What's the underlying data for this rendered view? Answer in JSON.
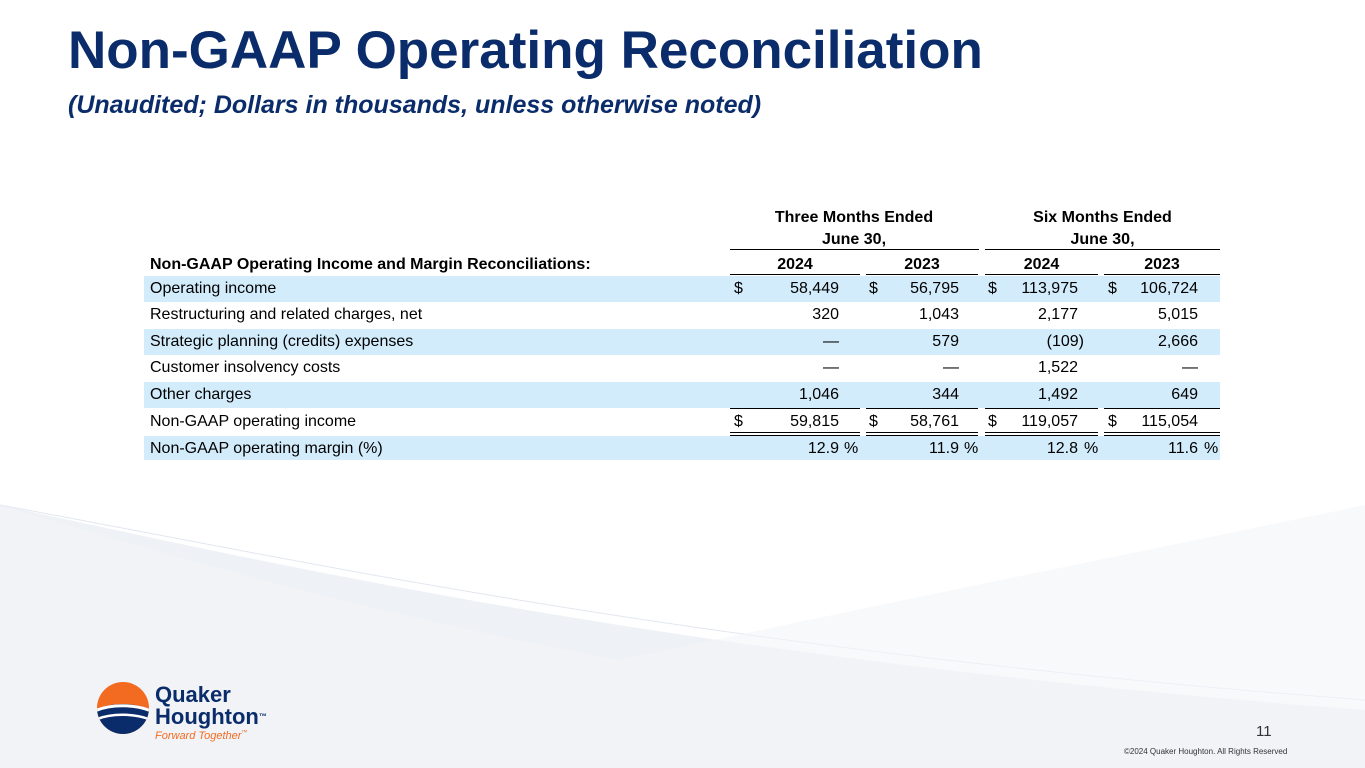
{
  "title": "Non-GAAP Operating Reconciliation",
  "subtitle": "(Unaudited; Dollars in thousands, unless otherwise noted)",
  "table": {
    "group_headers": [
      {
        "line1": "Three Months Ended",
        "line2": "June 30,"
      },
      {
        "line1": "Six Months Ended",
        "line2": "June 30,"
      }
    ],
    "section_label": "Non-GAAP Operating Income and Margin Reconciliations:",
    "years": [
      "2024",
      "2023",
      "2024",
      "2023"
    ],
    "rows": [
      {
        "label": "Operating income",
        "dollar": [
          "$",
          "$",
          "$",
          "$"
        ],
        "values": [
          "58,449",
          "56,795",
          "113,975",
          "106,724"
        ],
        "pct": [
          "",
          "",
          "",
          ""
        ]
      },
      {
        "label": "Restructuring and related charges, net",
        "dollar": [
          "",
          "",
          "",
          ""
        ],
        "values": [
          "320",
          "1,043",
          "2,177",
          "5,015"
        ],
        "pct": [
          "",
          "",
          "",
          ""
        ]
      },
      {
        "label": "Strategic planning (credits) expenses",
        "dollar": [
          "",
          "",
          "",
          ""
        ],
        "values": [
          "—",
          "579",
          "(109)",
          "2,666"
        ],
        "pct": [
          "",
          "",
          "",
          ""
        ]
      },
      {
        "label": "Customer insolvency costs",
        "dollar": [
          "",
          "",
          "",
          ""
        ],
        "values": [
          "—",
          "—",
          "1,522",
          "—"
        ],
        "pct": [
          "",
          "",
          "",
          ""
        ]
      },
      {
        "label": "Other charges",
        "dollar": [
          "",
          "",
          "",
          ""
        ],
        "values": [
          "1,046",
          "344",
          "1,492",
          "649"
        ],
        "pct": [
          "",
          "",
          "",
          ""
        ]
      },
      {
        "label": "Non-GAAP operating income",
        "dollar": [
          "$",
          "$",
          "$",
          "$"
        ],
        "values": [
          "59,815",
          "58,761",
          "119,057",
          "115,054"
        ],
        "pct": [
          "",
          "",
          "",
          ""
        ]
      },
      {
        "label": "Non-GAAP operating margin (%)",
        "dollar": [
          "",
          "",
          "",
          ""
        ],
        "values": [
          "12.9",
          "11.9",
          "12.8",
          "11.6"
        ],
        "pct": [
          "%",
          "%",
          "%",
          "%"
        ]
      }
    ]
  },
  "logo": {
    "line1": "Quaker",
    "line2": "Houghton",
    "tm": "™",
    "tagline": "Forward Together",
    "tagline_tm": "™"
  },
  "page_number": "11",
  "copyright": "©2024 Quaker Houghton. All Rights Reserved",
  "colors": {
    "navy": "#0b2c6b",
    "shade": "#d3ecfb",
    "orange": "#f26b21",
    "swoosh": "#e9edf5"
  }
}
